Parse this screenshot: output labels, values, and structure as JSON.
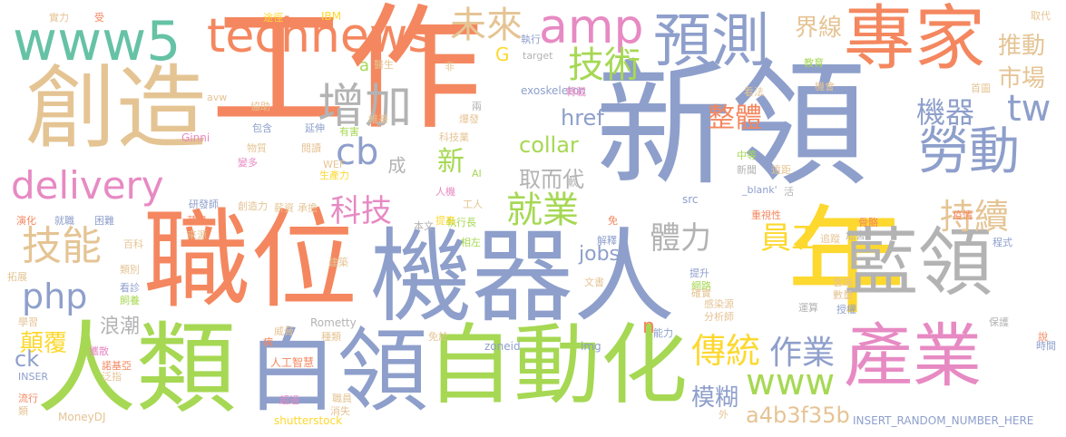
{
  "palette": {
    "orange": "#f4875f",
    "blue": "#8e9fcb",
    "green": "#a6d853",
    "yellow": "#fdd82f",
    "tan": "#e5c494",
    "grey": "#b3b3b3",
    "pink": "#e78ac3",
    "teal": "#66c2a5"
  },
  "words": [
    {
      "text": "工作",
      "color": "orange"
    },
    {
      "text": "新領",
      "color": "blue"
    },
    {
      "text": "年",
      "color": "yellow"
    },
    {
      "text": "機器人",
      "color": "blue"
    },
    {
      "text": "職位",
      "color": "orange"
    },
    {
      "text": "人類",
      "color": "green"
    },
    {
      "text": "創造",
      "color": "tan"
    },
    {
      "text": "白領",
      "color": "blue"
    },
    {
      "text": "自動化",
      "color": "green"
    },
    {
      "text": "專家",
      "color": "orange"
    },
    {
      "text": "藍領",
      "color": "grey"
    },
    {
      "text": "產業",
      "color": "pink"
    },
    {
      "text": "預測",
      "color": "blue"
    },
    {
      "text": "www5",
      "color": "teal"
    },
    {
      "text": "technews",
      "color": "orange"
    },
    {
      "text": "勞動",
      "color": "blue"
    },
    {
      "text": "增加",
      "color": "grey"
    },
    {
      "text": "amp",
      "color": "pink"
    },
    {
      "text": "delivery",
      "color": "pink"
    },
    {
      "text": "cb",
      "color": "blue"
    },
    {
      "text": "技能",
      "color": "tan"
    },
    {
      "text": "未來",
      "color": "tan"
    },
    {
      "text": "技術",
      "color": "green"
    },
    {
      "text": "tw",
      "color": "blue"
    },
    {
      "text": "php",
      "color": "blue"
    },
    {
      "text": "就業",
      "color": "green"
    },
    {
      "text": "科技",
      "color": "pink"
    },
    {
      "text": "www",
      "color": "green"
    },
    {
      "text": "持續",
      "color": "tan"
    },
    {
      "text": "傳統",
      "color": "yellow"
    },
    {
      "text": "作業",
      "color": "blue"
    },
    {
      "text": "員工",
      "color": "yellow"
    },
    {
      "text": "體力",
      "color": "grey"
    },
    {
      "text": "機器",
      "color": "blue"
    },
    {
      "text": "整體",
      "color": "orange"
    },
    {
      "text": "界線",
      "color": "tan"
    },
    {
      "text": "推動",
      "color": "tan"
    },
    {
      "text": "市場",
      "color": "tan"
    },
    {
      "text": "collar",
      "color": "green"
    },
    {
      "text": "href",
      "color": "blue"
    },
    {
      "text": "jobs",
      "color": "blue"
    },
    {
      "text": "新",
      "color": "green"
    },
    {
      "text": "取而代",
      "color": "grey"
    },
    {
      "text": "a4b3f35b",
      "color": "tan"
    },
    {
      "text": "模糊",
      "color": "blue"
    },
    {
      "text": "顛覆",
      "color": "yellow"
    },
    {
      "text": "浪潮",
      "color": "grey"
    },
    {
      "text": "ck",
      "color": "blue"
    },
    {
      "text": "G",
      "color": "yellow"
    },
    {
      "text": "a",
      "color": "green"
    },
    {
      "text": "n",
      "color": "orange"
    },
    {
      "text": "成",
      "color": "grey"
    },
    {
      "text": "INSERT_RANDOM_NUMBER_HERE",
      "color": "blue"
    },
    {
      "text": "exoskeleton",
      "color": "blue"
    },
    {
      "text": "shutterstock",
      "color": "yellow"
    },
    {
      "text": "Rometty",
      "color": "grey"
    },
    {
      "text": "MoneyDJ",
      "color": "tan"
    },
    {
      "text": "IBM",
      "color": "yellow"
    },
    {
      "text": "Ginni",
      "color": "pink"
    },
    {
      "text": "target",
      "color": "grey"
    },
    {
      "text": "zoneid",
      "color": "blue"
    },
    {
      "text": "img",
      "color": "blue"
    },
    {
      "text": "src",
      "color": "blue"
    },
    {
      "text": "_blank'",
      "color": "blue"
    },
    {
      "text": "人工智慧",
      "color": "orange"
    },
    {
      "text": "實力",
      "color": "tan"
    },
    {
      "text": "受",
      "color": "orange"
    },
    {
      "text": "途徑",
      "color": "yellow"
    },
    {
      "text": "取代",
      "color": "tan"
    },
    {
      "text": "時間",
      "color": "blue"
    },
    {
      "text": "教育",
      "color": "green"
    },
    {
      "text": "醫生",
      "color": "tan"
    },
    {
      "text": "執行",
      "color": "blue"
    },
    {
      "text": "協助",
      "color": "tan"
    },
    {
      "text": "包含",
      "color": "blue"
    },
    {
      "text": "延伸",
      "color": "blue"
    },
    {
      "text": "有害",
      "color": "green"
    },
    {
      "text": "閱讀",
      "color": "tan"
    },
    {
      "text": "物質",
      "color": "tan"
    },
    {
      "text": "變多",
      "color": "pink"
    },
    {
      "text": "生產力",
      "color": "yellow"
    },
    {
      "text": "研發師",
      "color": "blue"
    },
    {
      "text": "創造力",
      "color": "tan"
    },
    {
      "text": "薪資",
      "color": "tan"
    },
    {
      "text": "承擔",
      "color": "tan"
    },
    {
      "text": "就職",
      "color": "blue"
    },
    {
      "text": "困難",
      "color": "blue"
    },
    {
      "text": "拓展",
      "color": "tan"
    },
    {
      "text": "類別",
      "color": "tan"
    },
    {
      "text": "看診",
      "color": "blue"
    },
    {
      "text": "飼養",
      "color": "green"
    },
    {
      "text": "建築",
      "color": "tan"
    },
    {
      "text": "威脅",
      "color": "tan"
    },
    {
      "text": "種類",
      "color": "tan"
    },
    {
      "text": "免於",
      "color": "tan"
    },
    {
      "text": "超過",
      "color": "pink"
    },
    {
      "text": "消失",
      "color": "tan"
    },
    {
      "text": "職員",
      "color": "tan"
    },
    {
      "text": "維基",
      "color": "tan"
    },
    {
      "text": "爆發",
      "color": "tan"
    },
    {
      "text": "科技業",
      "color": "tan"
    },
    {
      "text": "執行長",
      "color": "green"
    },
    {
      "text": "提高",
      "color": "yellow"
    },
    {
      "text": "本文",
      "color": "grey"
    },
    {
      "text": "相左",
      "color": "green"
    },
    {
      "text": "解釋",
      "color": "blue"
    },
    {
      "text": "能力",
      "color": "blue"
    },
    {
      "text": "網路",
      "color": "green"
    },
    {
      "text": "提升",
      "color": "blue"
    },
    {
      "text": "確實",
      "color": "tan"
    },
    {
      "text": "文書",
      "color": "tan"
    },
    {
      "text": "感染源",
      "color": "tan"
    },
    {
      "text": "分析師",
      "color": "tan"
    },
    {
      "text": "運算",
      "color": "grey"
    },
    {
      "text": "授權",
      "color": "blue"
    },
    {
      "text": "雲端",
      "color": "tan"
    },
    {
      "text": "數量",
      "color": "tan"
    },
    {
      "text": "危害",
      "color": "grey"
    },
    {
      "text": "追蹤",
      "color": "tan"
    },
    {
      "text": "骨骼",
      "color": "orange"
    },
    {
      "text": "重視性",
      "color": "orange"
    },
    {
      "text": "疫情",
      "color": "orange"
    },
    {
      "text": "程式",
      "color": "blue"
    },
    {
      "text": "保護",
      "color": "grey"
    },
    {
      "text": "說",
      "color": "orange"
    },
    {
      "text": "外",
      "color": "tan"
    },
    {
      "text": "看法",
      "color": "tan"
    },
    {
      "text": "機會",
      "color": "tan"
    },
    {
      "text": "首圖",
      "color": "tan"
    },
    {
      "text": "轉載",
      "color": "pink"
    },
    {
      "text": "中等",
      "color": "green"
    },
    {
      "text": "新聞",
      "color": "grey"
    },
    {
      "text": "遠距",
      "color": "tan"
    },
    {
      "text": "活",
      "color": "grey"
    },
    {
      "text": "軟",
      "color": "grey"
    },
    {
      "text": "AI",
      "color": "green"
    },
    {
      "text": "人機",
      "color": "pink"
    },
    {
      "text": "工人",
      "color": "tan"
    },
    {
      "text": "兩",
      "color": "grey"
    },
    {
      "text": "非",
      "color": "tan"
    },
    {
      "text": "WEF",
      "color": "tan"
    },
    {
      "text": "avw",
      "color": "tan"
    },
    {
      "text": "百科",
      "color": "tan"
    },
    {
      "text": "演化",
      "color": "orange"
    },
    {
      "text": "來源",
      "color": "tan"
    },
    {
      "text": "蘋果",
      "color": "orange"
    },
    {
      "text": "流行",
      "color": "orange"
    },
    {
      "text": "學習",
      "color": "tan"
    },
    {
      "text": "諾基亞",
      "color": "orange"
    },
    {
      "text": "泛指",
      "color": "tan"
    },
    {
      "text": "INSER",
      "color": "blue"
    },
    {
      "text": "類",
      "color": "tan"
    },
    {
      "text": "病",
      "color": "orange"
    },
    {
      "text": "攜散",
      "color": "pink"
    },
    {
      "text": "免",
      "color": "orange"
    }
  ]
}
